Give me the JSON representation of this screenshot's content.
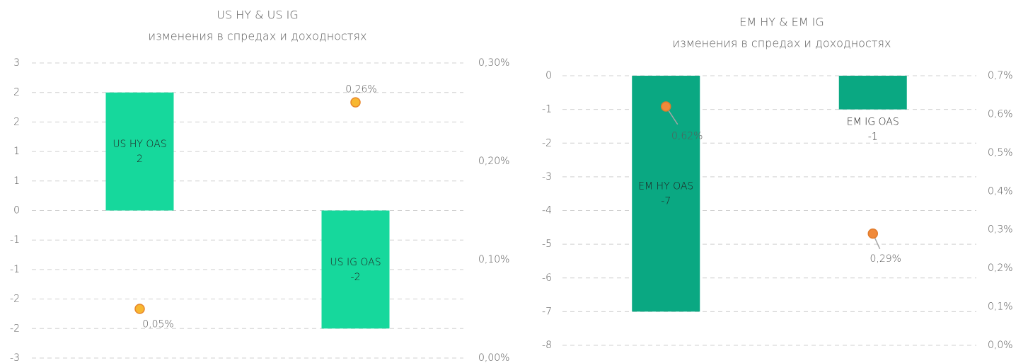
{
  "chart_data": [
    {
      "type": "bar",
      "title": "US HY & US IG",
      "subtitle": "изменения в спредах и доходностях",
      "categories": [
        "US HY OAS",
        "US IG OAS"
      ],
      "series": [
        {
          "type": "bar",
          "color": "#16d89c",
          "values": [
            2.4,
            -2.4
          ],
          "value_labels": [
            "2",
            "-2"
          ]
        },
        {
          "type": "scatter",
          "axis": "y2",
          "color": "#f7b731",
          "edge": "#e8862a",
          "values": [
            0.05,
            0.26
          ],
          "value_labels": [
            "0,05%",
            "0,26%"
          ]
        }
      ],
      "ylim": [
        -3,
        3
      ],
      "yticks": [
        {
          "value": -3,
          "label": "-3"
        },
        {
          "value": -2.4,
          "label": "-2"
        },
        {
          "value": -1.8,
          "label": "-2"
        },
        {
          "value": -1.2,
          "label": "-1"
        },
        {
          "value": -0.6,
          "label": "-1"
        },
        0,
        {
          "value": 0.6,
          "label": "1"
        },
        {
          "value": 1.2,
          "label": "1"
        },
        {
          "value": 1.8,
          "label": "2"
        },
        {
          "value": 2.4,
          "label": "2"
        },
        3
      ],
      "y2lim": [
        0,
        0.3
      ],
      "y2ticks": [
        {
          "value": 0,
          "label": "0,00%"
        },
        {
          "value": 0.1,
          "label": "0,10%"
        },
        {
          "value": 0.2,
          "label": "0,20%"
        },
        {
          "value": 0.3,
          "label": "0,30%"
        }
      ],
      "grid": true
    },
    {
      "type": "bar",
      "title": "EM HY & EM IG",
      "subtitle": "изменения в спредах и доходностях",
      "categories": [
        "EM HY OAS",
        "EM IG OAS"
      ],
      "series": [
        {
          "type": "bar",
          "color": "#0aa882",
          "values": [
            -7,
            -1
          ],
          "value_labels": [
            "-7",
            "-1"
          ]
        },
        {
          "type": "scatter",
          "axis": "y2",
          "color": "#f08a3a",
          "edge": "#e07a2a",
          "values": [
            0.62,
            0.29
          ],
          "value_labels": [
            "0,62%",
            "0,29%"
          ]
        }
      ],
      "ylim": [
        -8,
        0
      ],
      "yticks": [
        -8,
        -7,
        -6,
        -5,
        -4,
        -3,
        -2,
        -1,
        0
      ],
      "y2lim": [
        0,
        0.7
      ],
      "y2ticks": [
        {
          "value": 0,
          "label": "0,0%"
        },
        {
          "value": 0.1,
          "label": "0,1%"
        },
        {
          "value": 0.2,
          "label": "0,2%"
        },
        {
          "value": 0.3,
          "label": "0,3%"
        },
        {
          "value": 0.4,
          "label": "0,4%"
        },
        {
          "value": 0.5,
          "label": "0,5%"
        },
        {
          "value": 0.6,
          "label": "0,6%"
        },
        {
          "value": 0.7,
          "label": "0,7%"
        }
      ],
      "grid": true
    }
  ]
}
